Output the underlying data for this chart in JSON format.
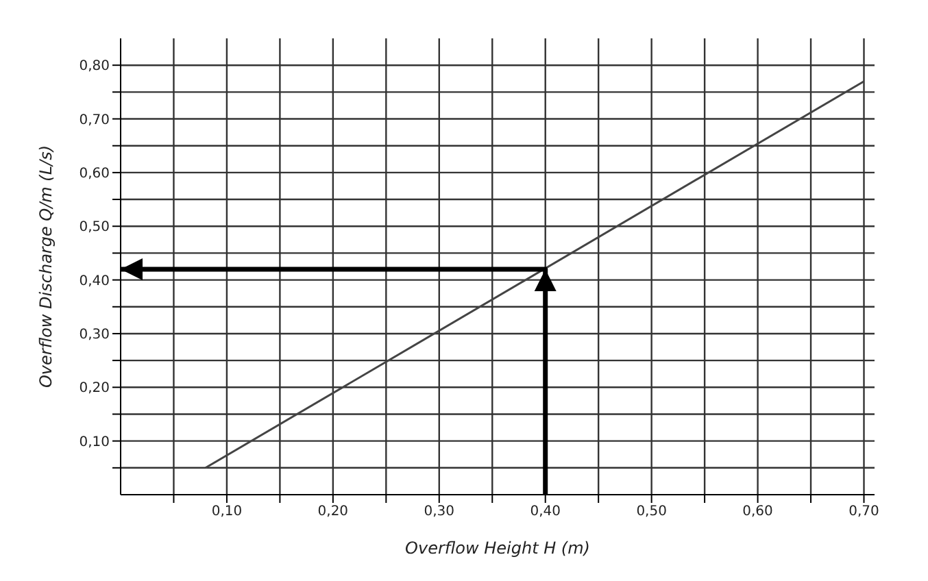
{
  "chart_data": {
    "type": "line",
    "xlabel": "Overflow Height H (m)",
    "ylabel": "Overflow Discharge Q/m (L/s)",
    "series": [
      {
        "color": "#444444",
        "x": [
          0.08,
          0.7
        ],
        "values": [
          0.05,
          0.77
        ]
      },
      {
        "color": "#000000",
        "x": [
          0.4,
          0.4,
          0.0
        ],
        "values": [
          0.0,
          0.42,
          0.42
        ]
      }
    ],
    "xlim": [
      0,
      0.71
    ],
    "ylim": [
      0,
      0.85
    ],
    "xticks": [
      {
        "value": 0.05,
        "label": null
      },
      {
        "value": 0.1,
        "label": "0,10"
      },
      {
        "value": 0.15,
        "label": null
      },
      {
        "value": 0.2,
        "label": "0,20"
      },
      {
        "value": 0.25,
        "label": null
      },
      {
        "value": 0.3,
        "label": "0,30"
      },
      {
        "value": 0.35,
        "label": null
      },
      {
        "value": 0.4,
        "label": "0,40"
      },
      {
        "value": 0.45,
        "label": null
      },
      {
        "value": 0.5,
        "label": "0,50"
      },
      {
        "value": 0.55,
        "label": null
      },
      {
        "value": 0.6,
        "label": "0,60"
      },
      {
        "value": 0.65,
        "label": null
      },
      {
        "value": 0.7,
        "label": "0,70"
      }
    ],
    "yticks": [
      {
        "value": 0.05,
        "label": null
      },
      {
        "value": 0.1,
        "label": "0,10"
      },
      {
        "value": 0.15,
        "label": null
      },
      {
        "value": 0.2,
        "label": "0,20"
      },
      {
        "value": 0.25,
        "label": null
      },
      {
        "value": 0.3,
        "label": "0,30"
      },
      {
        "value": 0.35,
        "label": null
      },
      {
        "value": 0.4,
        "label": "0,40"
      },
      {
        "value": 0.45,
        "label": null
      },
      {
        "value": 0.5,
        "label": "0,50"
      },
      {
        "value": 0.55,
        "label": null
      },
      {
        "value": 0.6,
        "label": "0,60"
      },
      {
        "value": 0.65,
        "label": null
      },
      {
        "value": 0.7,
        "label": "0,70"
      },
      {
        "value": 0.75,
        "label": null
      },
      {
        "value": 0.8,
        "label": "0,80"
      }
    ],
    "grid": true,
    "line_style": "solid",
    "marker": "none"
  }
}
